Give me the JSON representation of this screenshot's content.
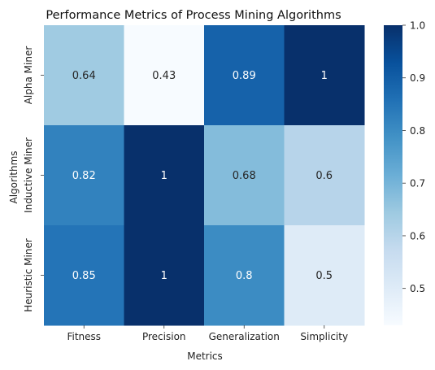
{
  "chart_data": {
    "type": "heatmap",
    "title": "Performance Metrics of Process Mining Algorithms",
    "xlabel": "Metrics",
    "ylabel": "Algorithms",
    "x_categories": [
      "Fitness",
      "Precision",
      "Generalization",
      "Simplicity"
    ],
    "y_categories": [
      "Alpha Miner",
      "Inductive Miner",
      "Heuristic Miner"
    ],
    "values": [
      [
        0.64,
        0.43,
        0.89,
        1
      ],
      [
        0.82,
        1,
        0.68,
        0.6
      ],
      [
        0.85,
        1,
        0.8,
        0.5
      ]
    ],
    "value_labels": [
      [
        "0.64",
        "0.43",
        "0.89",
        "1"
      ],
      [
        "0.82",
        "1",
        "0.68",
        "0.6"
      ],
      [
        "0.85",
        "1",
        "0.8",
        "0.5"
      ]
    ],
    "colorbar": {
      "min": 0.43,
      "max": 1.0,
      "ticks": [
        0.5,
        0.6,
        0.7,
        0.8,
        0.9,
        1.0
      ],
      "tick_labels": [
        "0.5",
        "0.6",
        "0.7",
        "0.8",
        "0.9",
        "1.0"
      ]
    },
    "colormap": "Blues",
    "colormap_stops": [
      "#f7fbff",
      "#deebf7",
      "#c6dbef",
      "#9ecae1",
      "#6baed6",
      "#4292c6",
      "#2171b5",
      "#08519c",
      "#08306b"
    ],
    "grid": false,
    "legend": "colorbar-right"
  }
}
